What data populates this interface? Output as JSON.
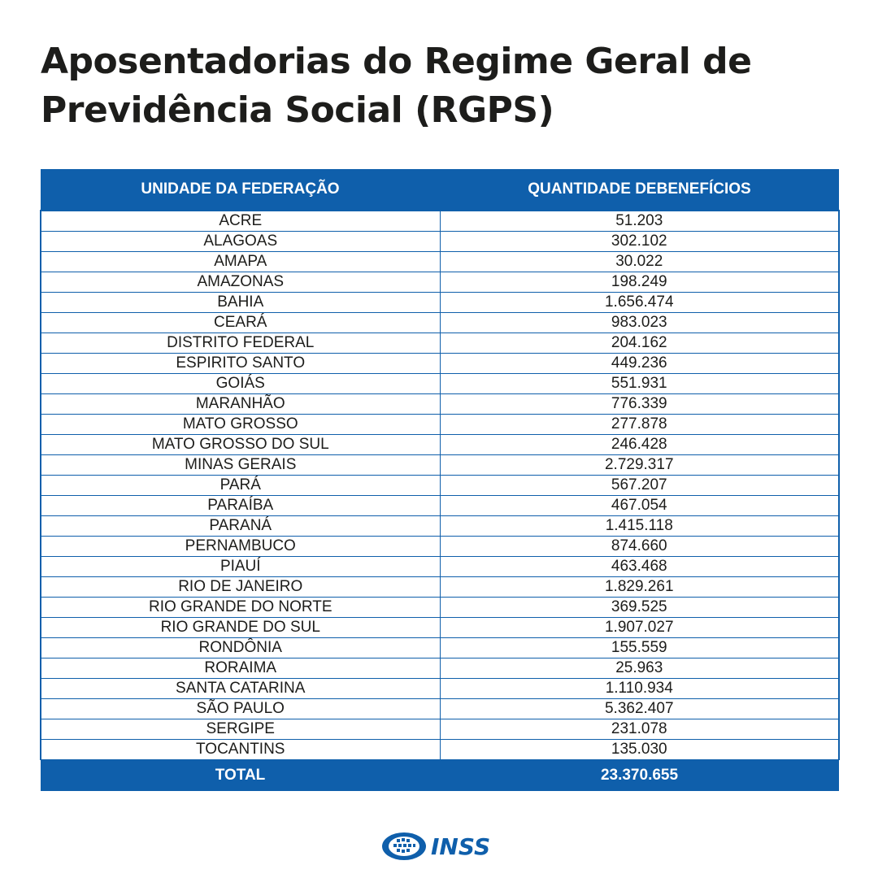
{
  "title": "Aposentadorias do Regime Geral de Previdência Social (RGPS)",
  "table": {
    "headers": [
      "UNIDADE DA FEDERAÇÃO",
      "QUANTIDADE DEBENEFÍCIOS"
    ],
    "rows": [
      [
        "ACRE",
        "51.203"
      ],
      [
        "ALAGOAS",
        "302.102"
      ],
      [
        "AMAPA",
        "30.022"
      ],
      [
        "AMAZONAS",
        "198.249"
      ],
      [
        "BAHIA",
        "1.656.474"
      ],
      [
        "CEARÁ",
        "983.023"
      ],
      [
        "DISTRITO FEDERAL",
        "204.162"
      ],
      [
        "ESPIRITO SANTO",
        "449.236"
      ],
      [
        "GOIÁS",
        "551.931"
      ],
      [
        "MARANHÃO",
        "776.339"
      ],
      [
        "MATO GROSSO",
        "277.878"
      ],
      [
        "MATO GROSSO DO SUL",
        "246.428"
      ],
      [
        "MINAS GERAIS",
        "2.729.317"
      ],
      [
        "PARÁ",
        "567.207"
      ],
      [
        "PARAÍBA",
        "467.054"
      ],
      [
        "PARANÁ",
        "1.415.118"
      ],
      [
        "PERNAMBUCO",
        "874.660"
      ],
      [
        "PIAUÍ",
        "463.468"
      ],
      [
        "RIO DE JANEIRO",
        "1.829.261"
      ],
      [
        "RIO GRANDE DO NORTE",
        "369.525"
      ],
      [
        "RIO GRANDE DO SUL",
        "1.907.027"
      ],
      [
        "RONDÔNIA",
        "155.559"
      ],
      [
        "RORAIMA",
        "25.963"
      ],
      [
        "SANTA CATARINA",
        "1.110.934"
      ],
      [
        "SÃO PAULO",
        "5.362.407"
      ],
      [
        "SERGIPE",
        "231.078"
      ],
      [
        "TOCANTINS",
        "135.030"
      ]
    ],
    "total_label": "TOTAL",
    "total_value": "23.370.655"
  },
  "logo": {
    "text": "INSS",
    "icon": "inss-globe-logo-icon",
    "color": "#0f5fab"
  },
  "colors": {
    "accent": "#0f5fab",
    "text": "#1d1d1b",
    "background": "#ffffff"
  }
}
